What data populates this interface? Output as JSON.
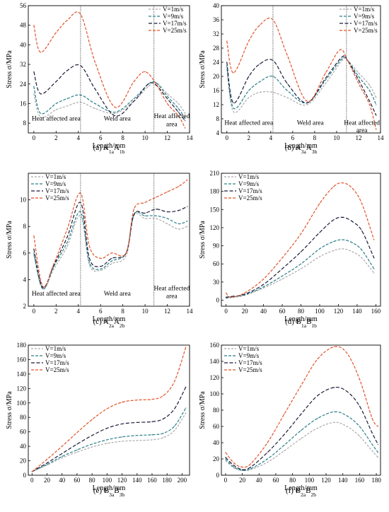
{
  "series_styles": [
    {
      "color": "#a9a9a9",
      "dash": "3,2"
    },
    {
      "color": "#2a7f8a",
      "dash": "4,2"
    },
    {
      "color": "#1b1b3a",
      "dash": "5,2.5"
    },
    {
      "color": "#e2532a",
      "dash": "4,2"
    }
  ],
  "chart_data": [
    {
      "type": "line",
      "caption": {
        "main": "(a) A",
        "s1": "1a",
        "mid": "A",
        "s2": "1b"
      },
      "xlabel": "Length/mm",
      "ylabel": "Stress σ/MPa",
      "xlim": [
        -0.5,
        14
      ],
      "ylim": [
        4,
        56
      ],
      "xticks": [
        0,
        2,
        4,
        6,
        8,
        10,
        12,
        14
      ],
      "yticks": [
        8,
        16,
        24,
        32,
        40,
        48,
        56
      ],
      "vlines": [
        4.2,
        10.8
      ],
      "annotations": [
        {
          "text": "Heat affected area",
          "x": 2.0,
          "y": 9.0
        },
        {
          "text": "Weld area",
          "x": 7.5,
          "y": 9.0
        },
        {
          "text": "Heat affected",
          "x": 12.4,
          "y": 10.0
        },
        {
          "text": "area",
          "x": 12.4,
          "y": 6.7
        }
      ],
      "legend": "top-right",
      "series": [
        {
          "name": "V=1m/s",
          "x": [
            0,
            0.6,
            2,
            3,
            4.2,
            5.5,
            7.3,
            9,
            10.3,
            11,
            12,
            13,
            13.6
          ],
          "y": [
            20,
            10.5,
            13.5,
            15,
            16.5,
            14,
            12,
            17,
            23,
            24.5,
            20,
            16,
            12
          ]
        },
        {
          "name": "V=9m/s",
          "x": [
            0,
            0.6,
            2,
            3,
            4.2,
            5.5,
            7.3,
            9,
            10.3,
            11,
            12,
            13,
            13.6
          ],
          "y": [
            23,
            12,
            16,
            18,
            19.5,
            16,
            12.5,
            18,
            24,
            24.5,
            19,
            14,
            10
          ]
        },
        {
          "name": "V=17m/s",
          "x": [
            0,
            0.6,
            2,
            3,
            4.2,
            5.5,
            7.3,
            9,
            10.3,
            11,
            12,
            13,
            13.6
          ],
          "y": [
            29,
            20,
            25,
            29.5,
            31.5,
            22,
            11,
            17,
            24,
            23.5,
            18,
            12.5,
            9
          ]
        },
        {
          "name": "V=25m/s",
          "x": [
            0,
            0.6,
            2,
            3,
            4.2,
            5.5,
            7.3,
            9,
            10,
            11,
            12,
            13,
            13.6
          ],
          "y": [
            48,
            37,
            45,
            50,
            52.5,
            33,
            14.5,
            25,
            29,
            24,
            16,
            11,
            6
          ]
        }
      ]
    },
    {
      "type": "line",
      "caption": {
        "main": "(b) A",
        "s1": "3a",
        "mid": "A",
        "s2": "3b"
      },
      "xlabel": "Length/mm",
      "ylabel": "Stress σ/MPa",
      "xlim": [
        -0.5,
        14
      ],
      "ylim": [
        4,
        40
      ],
      "xticks": [
        0,
        2,
        4,
        6,
        8,
        10,
        12,
        14
      ],
      "yticks": [
        4,
        8,
        12,
        16,
        20,
        24,
        28,
        32,
        36,
        40
      ],
      "vlines": [
        4.2,
        10.9
      ],
      "annotations": [
        {
          "text": "Heat affected area",
          "x": 2.0,
          "y": 6.3
        },
        {
          "text": "Weld area",
          "x": 7.6,
          "y": 6.3
        },
        {
          "text": "Heat affected",
          "x": 12.3,
          "y": 6.3
        },
        {
          "text": "area",
          "x": 12.3,
          "y": 4.2
        }
      ],
      "legend": "top-right",
      "series": [
        {
          "name": "V=1m/s",
          "x": [
            0,
            0.6,
            2,
            3,
            4.2,
            5.5,
            7.3,
            9,
            10.5,
            11,
            12,
            13,
            13.6
          ],
          "y": [
            22,
            10,
            14,
            15.5,
            15.5,
            14,
            12,
            18,
            24.5,
            24.5,
            21,
            17.5,
            14
          ]
        },
        {
          "name": "V=9m/s",
          "x": [
            0,
            0.6,
            2,
            3,
            4.2,
            5.5,
            7.3,
            9,
            10.5,
            11,
            12,
            13,
            13.6
          ],
          "y": [
            23,
            11,
            16,
            18.5,
            20,
            16,
            12.5,
            19,
            25,
            24.5,
            20,
            16,
            12
          ]
        },
        {
          "name": "V=17m/s",
          "x": [
            0,
            0.6,
            2,
            3,
            4.2,
            5.5,
            7.3,
            9,
            10.5,
            11,
            12,
            13,
            13.6
          ],
          "y": [
            24,
            12.5,
            20,
            23.5,
            24.5,
            18,
            12.5,
            19.5,
            25.5,
            24.5,
            19,
            13,
            9
          ]
        },
        {
          "name": "V=25m/s",
          "x": [
            0,
            0.6,
            2,
            3,
            4.2,
            5.5,
            7.3,
            9,
            10.3,
            11,
            12,
            13,
            13.6
          ],
          "y": [
            30,
            21,
            30,
            34.5,
            36,
            26,
            13,
            21,
            27.5,
            24.5,
            18,
            12,
            5
          ]
        }
      ]
    },
    {
      "type": "line",
      "caption": {
        "main": "(c) A",
        "s1": "2a",
        "mid": "A",
        "s2": "2b"
      },
      "xlabel": "Length/mm",
      "ylabel": "Stress σ/MPa",
      "xlim": [
        -0.5,
        14
      ],
      "ylim": [
        2,
        12
      ],
      "xticks": [
        0,
        2,
        4,
        6,
        8,
        10,
        12,
        14
      ],
      "yticks": [
        2,
        4,
        6,
        8,
        10
      ],
      "vlines": [
        4.2,
        10.8
      ],
      "annotations": [
        {
          "text": "Heat affected area",
          "x": 2.0,
          "y": 2.8
        },
        {
          "text": "Weld area",
          "x": 7.5,
          "y": 2.8
        },
        {
          "text": "Heat affected",
          "x": 12.4,
          "y": 3.2
        },
        {
          "text": "area",
          "x": 12.4,
          "y": 2.6
        }
      ],
      "legend": "top-left",
      "series": [
        {
          "name": "V=1m/s",
          "x": [
            0,
            0.8,
            1.8,
            3,
            4.2,
            5,
            6,
            7,
            8.3,
            9,
            10,
            11,
            12,
            13,
            13.8
          ],
          "y": [
            5.8,
            3.3,
            4.8,
            6.5,
            8.8,
            5.1,
            4.7,
            5.2,
            5.8,
            8.8,
            8.6,
            8.6,
            8.2,
            7.8,
            8.0
          ]
        },
        {
          "name": "V=9m/s",
          "x": [
            0,
            0.8,
            1.8,
            3,
            4.2,
            5,
            6,
            7,
            8.3,
            9,
            10,
            11,
            12,
            13,
            13.8
          ],
          "y": [
            6.0,
            3.3,
            5.0,
            6.8,
            9.1,
            5.3,
            4.8,
            5.4,
            6.0,
            8.9,
            8.8,
            8.8,
            8.6,
            8.2,
            8.4
          ]
        },
        {
          "name": "V=17m/s",
          "x": [
            0,
            0.8,
            1.8,
            3,
            4.2,
            5,
            6,
            7,
            8.3,
            9,
            10,
            11,
            12,
            13,
            13.8
          ],
          "y": [
            6.3,
            3.4,
            5.1,
            7.2,
            9.8,
            5.6,
            5.0,
            5.6,
            6.0,
            8.9,
            9.0,
            9.3,
            9.1,
            9.2,
            9.5
          ]
        },
        {
          "name": "V=25m/s",
          "x": [
            0,
            0.8,
            1.8,
            3,
            4.2,
            5,
            6,
            7,
            8.3,
            9,
            10,
            11,
            12,
            13,
            13.8
          ],
          "y": [
            7.3,
            3.5,
            5.2,
            7.8,
            10.5,
            6.5,
            5.6,
            6.0,
            6.0,
            9.3,
            9.8,
            10.2,
            10.6,
            11.0,
            11.5
          ]
        }
      ]
    },
    {
      "type": "line",
      "caption": {
        "main": "(d) B",
        "s1": "1a",
        "mid": "B",
        "s2": "1b"
      },
      "xlabel": "Length/mm",
      "ylabel": "Stress σ/MPa",
      "xlim": [
        -5,
        165
      ],
      "ylim": [
        -10,
        210
      ],
      "xticks": [
        0,
        20,
        40,
        60,
        80,
        100,
        120,
        140,
        160
      ],
      "yticks": [
        0,
        30,
        60,
        90,
        120,
        150,
        180,
        210
      ],
      "vlines": [],
      "annotations": [],
      "legend": "top-left",
      "series": [
        {
          "name": "V=1m/s",
          "x": [
            0,
            5,
            20,
            40,
            60,
            80,
            100,
            115,
            125,
            135,
            145,
            158
          ],
          "y": [
            3,
            4,
            8,
            20,
            35,
            52,
            72,
            82,
            85,
            80,
            70,
            45
          ]
        },
        {
          "name": "V=9m/s",
          "x": [
            0,
            5,
            20,
            40,
            60,
            80,
            100,
            115,
            125,
            135,
            145,
            158
          ],
          "y": [
            4,
            5,
            9,
            22,
            40,
            60,
            85,
            97,
            100,
            95,
            83,
            52
          ]
        },
        {
          "name": "V=17m/s",
          "x": [
            0,
            5,
            20,
            40,
            60,
            80,
            100,
            115,
            125,
            135,
            145,
            158
          ],
          "y": [
            5,
            6,
            10,
            26,
            52,
            80,
            112,
            133,
            137,
            130,
            115,
            70
          ]
        },
        {
          "name": "V=25m/s",
          "x": [
            0,
            5,
            20,
            40,
            60,
            80,
            100,
            115,
            125,
            135,
            145,
            158
          ],
          "y": [
            12,
            5,
            12,
            35,
            70,
            110,
            160,
            188,
            194,
            185,
            160,
            100
          ]
        }
      ]
    },
    {
      "type": "line",
      "caption": {
        "main": "(e) B",
        "s1": "3a",
        "mid": "B",
        "s2": "3b"
      },
      "xlabel": "Length/mm",
      "ylabel": "Stress σ/MPa",
      "xlim": [
        -5,
        210
      ],
      "ylim": [
        0,
        180
      ],
      "xticks": [
        0,
        20,
        40,
        60,
        80,
        100,
        120,
        140,
        160,
        180,
        200
      ],
      "yticks": [
        0,
        20,
        40,
        60,
        80,
        100,
        120,
        140,
        160,
        180
      ],
      "vlines": [],
      "annotations": [],
      "legend": "top-left",
      "series": [
        {
          "name": "V=1m/s",
          "x": [
            0,
            20,
            40,
            60,
            80,
            100,
            120,
            140,
            160,
            175,
            190,
            205
          ],
          "y": [
            5,
            14,
            24,
            32,
            39,
            44,
            47,
            48,
            49,
            52,
            62,
            86
          ]
        },
        {
          "name": "V=9m/s",
          "x": [
            0,
            20,
            40,
            60,
            80,
            100,
            120,
            140,
            160,
            175,
            190,
            205
          ],
          "y": [
            5,
            15,
            26,
            35,
            43,
            49,
            53,
            55,
            56,
            58,
            68,
            93
          ]
        },
        {
          "name": "V=17m/s",
          "x": [
            0,
            20,
            40,
            60,
            80,
            100,
            120,
            140,
            160,
            175,
            190,
            205
          ],
          "y": [
            5,
            17,
            30,
            43,
            55,
            65,
            71,
            73,
            74,
            78,
            92,
            122
          ]
        },
        {
          "name": "V=25m/s",
          "x": [
            0,
            20,
            40,
            60,
            80,
            100,
            120,
            140,
            160,
            175,
            190,
            205
          ],
          "y": [
            5,
            22,
            40,
            59,
            77,
            92,
            101,
            104,
            105,
            110,
            130,
            177
          ]
        }
      ]
    },
    {
      "type": "line",
      "caption": {
        "main": "(f) B",
        "s1": "2a",
        "mid": "B",
        "s2": "2b"
      },
      "xlabel": "Length/mm",
      "ylabel": "Stress σ/MPa",
      "xlim": [
        -5,
        185
      ],
      "ylim": [
        0,
        160
      ],
      "xticks": [
        0,
        20,
        40,
        60,
        80,
        100,
        120,
        140,
        160,
        180
      ],
      "yticks": [
        0,
        20,
        40,
        60,
        80,
        100,
        120,
        140,
        160
      ],
      "vlines": [],
      "annotations": [],
      "legend": "top-left",
      "series": [
        {
          "name": "V=1m/s",
          "x": [
            0,
            10,
            20,
            30,
            50,
            70,
            90,
            110,
            130,
            145,
            160,
            175,
            182
          ],
          "y": [
            18,
            9,
            6,
            7,
            16,
            30,
            45,
            58,
            65,
            60,
            48,
            30,
            22
          ]
        },
        {
          "name": "V=9m/s",
          "x": [
            0,
            10,
            20,
            30,
            50,
            70,
            90,
            110,
            130,
            145,
            160,
            175,
            182
          ],
          "y": [
            20,
            10,
            6,
            8,
            20,
            37,
            55,
            70,
            78,
            73,
            60,
            38,
            28
          ]
        },
        {
          "name": "V=17m/s",
          "x": [
            0,
            10,
            20,
            30,
            50,
            70,
            90,
            110,
            130,
            145,
            160,
            175,
            182
          ],
          "y": [
            22,
            12,
            7,
            10,
            28,
            50,
            75,
            98,
            108,
            103,
            85,
            52,
            38
          ]
        },
        {
          "name": "V=25m/s",
          "x": [
            0,
            10,
            20,
            30,
            50,
            70,
            90,
            110,
            130,
            145,
            160,
            175,
            182
          ],
          "y": [
            28,
            15,
            10,
            14,
            40,
            75,
            110,
            143,
            158,
            150,
            118,
            70,
            60
          ]
        }
      ]
    }
  ]
}
